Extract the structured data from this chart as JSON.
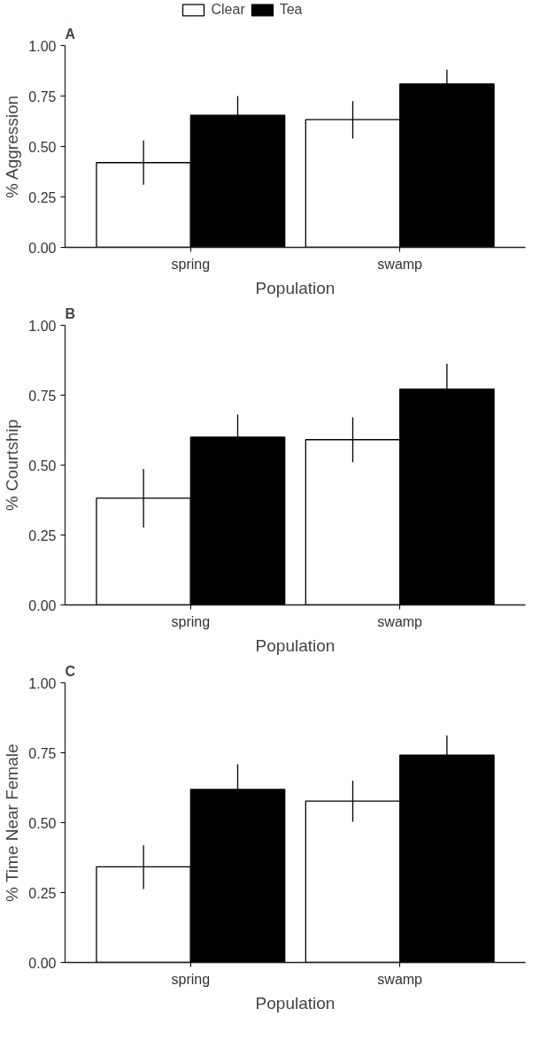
{
  "chart_data": [
    {
      "type": "bar",
      "title": "A",
      "xlabel": "Population",
      "ylabel": "% Aggression",
      "categories": [
        "spring",
        "swamp"
      ],
      "legend": "top",
      "grid": false,
      "series": [
        {
          "name": "Clear",
          "color": "#ffffff",
          "values": [
            0.42,
            0.633
          ],
          "errors": [
            [
              0.31,
              0.53
            ],
            [
              0.54,
              0.725
            ]
          ]
        },
        {
          "name": "Tea",
          "color": "#000000",
          "values": [
            0.655,
            0.81
          ],
          "errors": [
            0.095,
            0.07
          ]
        }
      ],
      "ylim": [
        0,
        1
      ],
      "yticks": [
        {
          "value": 0,
          "label": "0.00"
        },
        {
          "value": 0.25,
          "label": "0.25"
        },
        {
          "value": 0.5,
          "label": "0.50"
        },
        {
          "value": 0.75,
          "label": "0.75"
        },
        {
          "value": 1,
          "label": "1.00"
        }
      ]
    },
    {
      "type": "bar",
      "title": "B",
      "xlabel": "Population",
      "ylabel": "% Courtship",
      "categories": [
        "spring",
        "swamp"
      ],
      "grid": false,
      "series": [
        {
          "color": "#ffffff",
          "values": [
            0.382,
            0.591
          ],
          "errors": [
            [
              0.277,
              0.486
            ],
            [
              0.51,
              0.671
            ]
          ]
        },
        {
          "color": "#000000",
          "values": [
            0.6,
            0.772
          ],
          "errors": [
            0.08,
            0.09
          ]
        }
      ],
      "ylim": [
        0,
        1
      ],
      "yticks": [
        {
          "value": 0,
          "label": "0.00"
        },
        {
          "value": 0.25,
          "label": "0.25"
        },
        {
          "value": 0.5,
          "label": "0.50"
        },
        {
          "value": 0.75,
          "label": "0.75"
        },
        {
          "value": 1,
          "label": "1.00"
        }
      ]
    },
    {
      "type": "bar",
      "title": "C",
      "xlabel": "Population",
      "ylabel": "% Time Near Female",
      "categories": [
        "spring",
        "swamp"
      ],
      "grid": false,
      "series": [
        {
          "color": "#ffffff",
          "values": [
            0.342,
            0.577
          ],
          "errors": [
            [
              0.263,
              0.419
            ],
            [
              0.503,
              0.65
            ]
          ]
        },
        {
          "color": "#000000",
          "values": [
            0.619,
            0.742
          ],
          "errors": [
            0.09,
            0.07
          ]
        }
      ],
      "ylim": [
        0,
        1
      ],
      "yticks": [
        {
          "value": 0,
          "label": "0.00"
        },
        {
          "value": 0.25,
          "label": "0.25"
        },
        {
          "value": 0.5,
          "label": "0.50"
        },
        {
          "value": 0.75,
          "label": "0.75"
        },
        {
          "value": 1,
          "label": "1.00"
        }
      ]
    }
  ]
}
